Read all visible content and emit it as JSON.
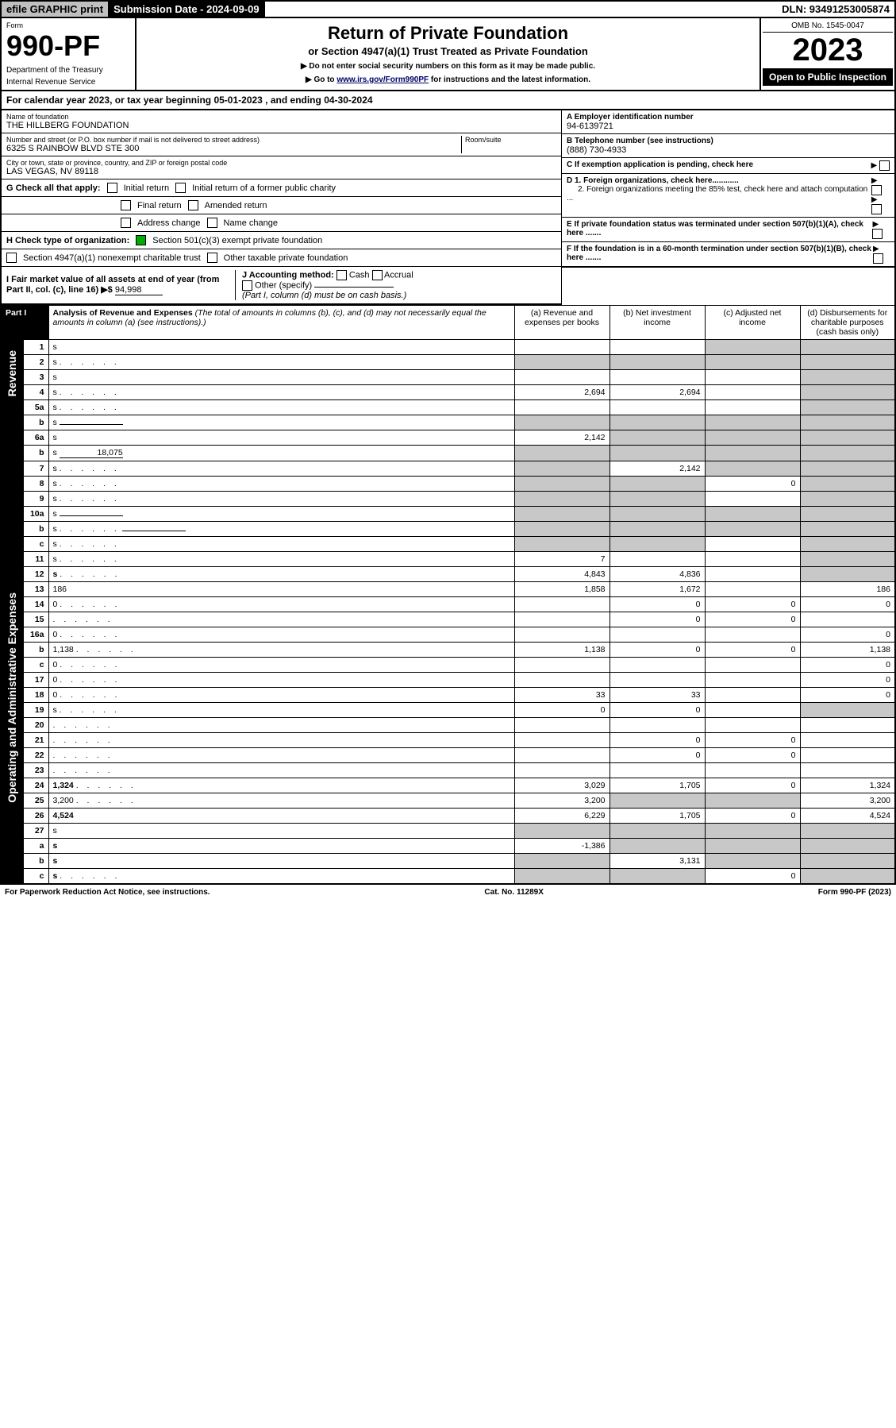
{
  "header": {
    "efile_btn": "efile GRAPHIC print",
    "submission_label": "Submission Date - 2024-09-09",
    "dln": "DLN: 93491253005874"
  },
  "form_header": {
    "form_label": "Form",
    "form_num": "990-PF",
    "dept1": "Department of the Treasury",
    "dept2": "Internal Revenue Service",
    "title": "Return of Private Foundation",
    "subtitle": "or Section 4947(a)(1) Trust Treated as Private Foundation",
    "note1": "▶ Do not enter social security numbers on this form as it may be made public.",
    "note2_prefix": "▶ Go to ",
    "note2_link": "www.irs.gov/Form990PF",
    "note2_suffix": " for instructions and the latest information.",
    "omb": "OMB No. 1545-0047",
    "year": "2023",
    "open_pub": "Open to Public Inspection"
  },
  "cal_year": {
    "prefix": "For calendar year 2023, or tax year beginning ",
    "begin": "05-01-2023",
    "mid": " , and ending ",
    "end": "04-30-2024"
  },
  "entity": {
    "name_label": "Name of foundation",
    "name": "THE HILLBERG FOUNDATION",
    "addr_label": "Number and street (or P.O. box number if mail is not delivered to street address)",
    "addr": "6325 S RAINBOW BLVD STE 300",
    "room_label": "Room/suite",
    "city_label": "City or town, state or province, country, and ZIP or foreign postal code",
    "city": "LAS VEGAS, NV  89118",
    "ein_label": "A Employer identification number",
    "ein": "94-6139721",
    "phone_label": "B Telephone number (see instructions)",
    "phone": "(888) 730-4933",
    "c_label": "C If exemption application is pending, check here",
    "d1": "D 1. Foreign organizations, check here............",
    "d2": "2. Foreign organizations meeting the 85% test, check here and attach computation ...",
    "e_label": "E  If private foundation status was terminated under section 507(b)(1)(A), check here .......",
    "f_label": "F  If the foundation is in a 60-month termination under section 507(b)(1)(B), check here ......."
  },
  "g": {
    "label": "G Check all that apply:",
    "opts": [
      "Initial return",
      "Initial return of a former public charity",
      "Final return",
      "Amended return",
      "Address change",
      "Name change"
    ]
  },
  "h": {
    "label": "H Check type of organization:",
    "opt1": "Section 501(c)(3) exempt private foundation",
    "opt2": "Section 4947(a)(1) nonexempt charitable trust",
    "opt3": "Other taxable private foundation"
  },
  "i": {
    "label": "I Fair market value of all assets at end of year (from Part II, col. (c), line 16)",
    "arrow": "▶$",
    "value": "94,998"
  },
  "j": {
    "label": "J Accounting method:",
    "cash": "Cash",
    "accrual": "Accrual",
    "other": "Other (specify)",
    "note": "(Part I, column (d) must be on cash basis.)"
  },
  "part1": {
    "label": "Part I",
    "title": "Analysis of Revenue and Expenses",
    "note": "(The total of amounts in columns (b), (c), and (d) may not necessarily equal the amounts in column (a) (see instructions).)",
    "col_a": "(a)  Revenue and expenses per books",
    "col_b": "(b)  Net investment income",
    "col_c": "(c)  Adjusted net income",
    "col_d": "(d)  Disbursements for charitable purposes (cash basis only)"
  },
  "sections": {
    "revenue": "Revenue",
    "expenses": "Operating and Administrative Expenses"
  },
  "rows": [
    {
      "n": "1",
      "d": "s",
      "a": "",
      "b": "",
      "c": "s"
    },
    {
      "n": "2",
      "d": "s",
      "dots": true,
      "a": "s",
      "b": "s",
      "c": "s"
    },
    {
      "n": "3",
      "d": "s",
      "a": "",
      "b": "",
      "c": ""
    },
    {
      "n": "4",
      "d": "s",
      "dots": true,
      "a": "2,694",
      "b": "2,694",
      "c": ""
    },
    {
      "n": "5a",
      "d": "s",
      "dots": true,
      "a": "",
      "b": "",
      "c": ""
    },
    {
      "n": "b",
      "d": "s",
      "under": true,
      "a": "s",
      "b": "s",
      "c": "s"
    },
    {
      "n": "6a",
      "d": "s",
      "a": "2,142",
      "b": "s",
      "c": "s"
    },
    {
      "n": "b",
      "d": "s",
      "under": true,
      "uval": "18,075",
      "a": "s",
      "b": "s",
      "c": "s"
    },
    {
      "n": "7",
      "d": "s",
      "dots": true,
      "a": "s",
      "b": "2,142",
      "c": "s"
    },
    {
      "n": "8",
      "d": "s",
      "dots": true,
      "a": "s",
      "b": "s",
      "c": "0"
    },
    {
      "n": "9",
      "d": "s",
      "dots": true,
      "a": "s",
      "b": "s",
      "c": ""
    },
    {
      "n": "10a",
      "d": "s",
      "under": true,
      "a": "s",
      "b": "s",
      "c": "s"
    },
    {
      "n": "b",
      "d": "s",
      "dots": true,
      "under": true,
      "a": "s",
      "b": "s",
      "c": "s"
    },
    {
      "n": "c",
      "d": "s",
      "dots": true,
      "a": "s",
      "b": "s",
      "c": ""
    },
    {
      "n": "11",
      "d": "s",
      "dots": true,
      "a": "7",
      "b": "",
      "c": ""
    },
    {
      "n": "12",
      "d": "s",
      "dots": true,
      "bold": true,
      "a": "4,843",
      "b": "4,836",
      "c": ""
    },
    {
      "n": "13",
      "d": "186",
      "a": "1,858",
      "b": "1,672",
      "c": ""
    },
    {
      "n": "14",
      "d": "0",
      "dots": true,
      "a": "",
      "b": "0",
      "c": "0"
    },
    {
      "n": "15",
      "d": "",
      "dots": true,
      "a": "",
      "b": "0",
      "c": "0"
    },
    {
      "n": "16a",
      "d": "0",
      "dots": true,
      "a": "",
      "b": "",
      "c": ""
    },
    {
      "n": "b",
      "d": "1,138",
      "dots": true,
      "a": "1,138",
      "b": "0",
      "c": "0"
    },
    {
      "n": "c",
      "d": "0",
      "dots": true,
      "a": "",
      "b": "",
      "c": ""
    },
    {
      "n": "17",
      "d": "0",
      "dots": true,
      "a": "",
      "b": "",
      "c": ""
    },
    {
      "n": "18",
      "d": "0",
      "dots": true,
      "a": "33",
      "b": "33",
      "c": ""
    },
    {
      "n": "19",
      "d": "s",
      "dots": true,
      "a": "0",
      "b": "0",
      "c": ""
    },
    {
      "n": "20",
      "d": "",
      "dots": true,
      "a": "",
      "b": "",
      "c": ""
    },
    {
      "n": "21",
      "d": "",
      "dots": true,
      "a": "",
      "b": "0",
      "c": "0"
    },
    {
      "n": "22",
      "d": "",
      "dots": true,
      "a": "",
      "b": "0",
      "c": "0"
    },
    {
      "n": "23",
      "d": "",
      "dots": true,
      "a": "",
      "b": "",
      "c": ""
    },
    {
      "n": "24",
      "d": "1,324",
      "dots": true,
      "bold": true,
      "a": "3,029",
      "b": "1,705",
      "c": "0"
    },
    {
      "n": "25",
      "d": "3,200",
      "dots": true,
      "a": "3,200",
      "b": "s",
      "c": "s"
    },
    {
      "n": "26",
      "d": "4,524",
      "bold": true,
      "a": "6,229",
      "b": "1,705",
      "c": "0"
    },
    {
      "n": "27",
      "d": "s",
      "a": "s",
      "b": "s",
      "c": "s"
    },
    {
      "n": "a",
      "d": "s",
      "bold": true,
      "a": "-1,386",
      "b": "s",
      "c": "s"
    },
    {
      "n": "b",
      "d": "s",
      "bold": true,
      "a": "s",
      "b": "3,131",
      "c": "s"
    },
    {
      "n": "c",
      "d": "s",
      "bold": true,
      "dots": true,
      "a": "s",
      "b": "s",
      "c": "0"
    }
  ],
  "footer": {
    "left": "For Paperwork Reduction Act Notice, see instructions.",
    "mid": "Cat. No. 11289X",
    "right": "Form 990-PF (2023)"
  },
  "colors": {
    "shaded": "#c8c8c8",
    "black": "#000000",
    "link": "#000066"
  }
}
